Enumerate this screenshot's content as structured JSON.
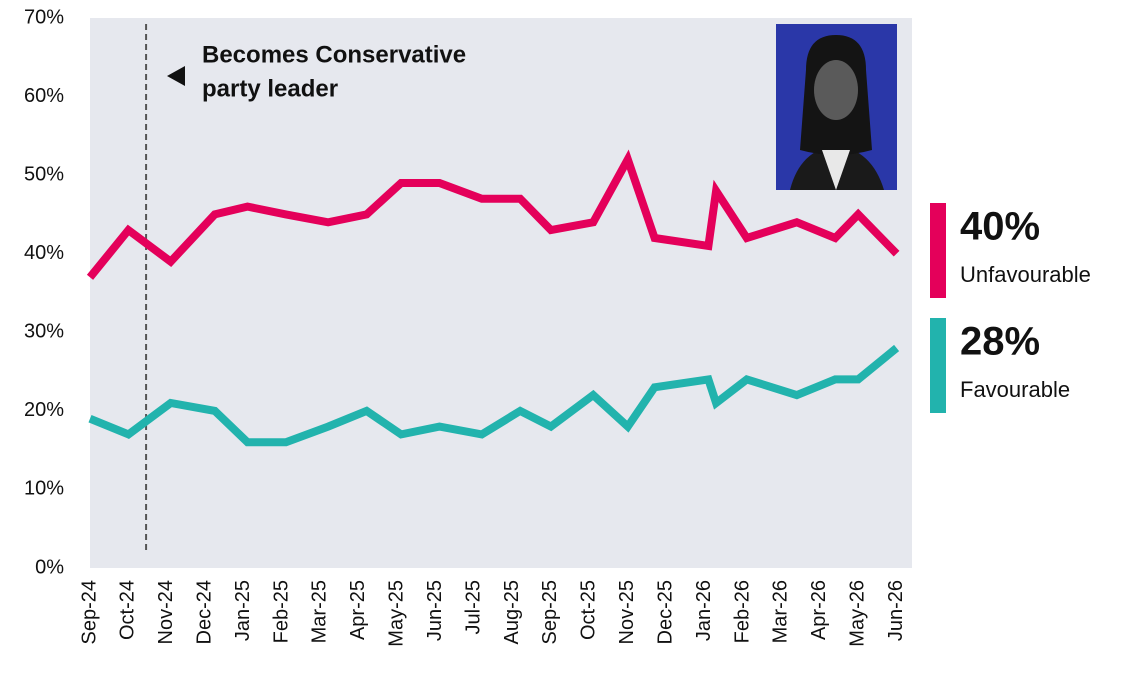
{
  "chart_data": {
    "type": "line",
    "x": [
      0,
      1,
      2.1,
      3.25,
      4.1,
      5.1,
      6.2,
      7.2,
      8.1,
      9.1,
      10.2,
      11.2,
      12.0,
      13.1,
      14.0,
      14.7,
      16.1,
      16.3,
      17.1,
      18.4,
      19.4,
      20.0,
      21
    ],
    "xlim": [
      0,
      21.4
    ],
    "xticks": [
      {
        "value": 0,
        "label": "Sep-24"
      },
      {
        "value": 1,
        "label": "Oct-24"
      },
      {
        "value": 2,
        "label": "Nov-24"
      },
      {
        "value": 3,
        "label": "Dec-24"
      },
      {
        "value": 4,
        "label": "Jan-25"
      },
      {
        "value": 5,
        "label": "Feb-25"
      },
      {
        "value": 6,
        "label": "Mar-25"
      },
      {
        "value": 7,
        "label": "Apr-25"
      },
      {
        "value": 8,
        "label": "May-25"
      },
      {
        "value": 9,
        "label": "Jun-25"
      },
      {
        "value": 10,
        "label": "Jul-25"
      },
      {
        "value": 11,
        "label": "Aug-25"
      },
      {
        "value": 12,
        "label": "Sep-25"
      },
      {
        "value": 13,
        "label": "Oct-25"
      },
      {
        "value": 14,
        "label": "Nov-25"
      },
      {
        "value": 15,
        "label": "Dec-25"
      },
      {
        "value": 16,
        "label": "Jan-26"
      },
      {
        "value": 17,
        "label": "Feb-26"
      },
      {
        "value": 18,
        "label": "Mar-26"
      },
      {
        "value": 19,
        "label": "Apr-26"
      },
      {
        "value": 20,
        "label": "May-26"
      },
      {
        "value": 21,
        "label": "Jun-26"
      }
    ],
    "ylim": [
      0,
      70
    ],
    "yticks": [
      {
        "value": 0,
        "label": "0%"
      },
      {
        "value": 10,
        "label": "10%"
      },
      {
        "value": 20,
        "label": "20%"
      },
      {
        "value": 30,
        "label": "30%"
      },
      {
        "value": 40,
        "label": "40%"
      },
      {
        "value": 50,
        "label": "50%"
      },
      {
        "value": 60,
        "label": "60%"
      },
      {
        "value": 70,
        "label": "70%"
      }
    ],
    "series": [
      {
        "name": "Unfavourable",
        "color": "#e4005a",
        "end_label": "40%",
        "values": [
          37,
          43,
          39,
          45,
          46,
          45,
          44,
          45,
          49,
          49,
          47,
          47,
          43,
          44,
          52,
          42,
          41,
          48,
          42,
          44,
          42,
          45,
          40
        ]
      },
      {
        "name": "Favourable",
        "color": "#22b3ad",
        "end_label": "28%",
        "values": [
          19,
          17,
          21,
          20,
          16,
          16,
          18,
          20,
          17,
          18,
          17,
          20,
          18,
          22,
          18,
          23,
          24,
          21,
          24,
          22,
          24,
          24,
          28
        ]
      }
    ],
    "annotation": {
      "x": 1.46,
      "lines": [
        "Becomes Conservative",
        "party leader"
      ]
    }
  }
}
